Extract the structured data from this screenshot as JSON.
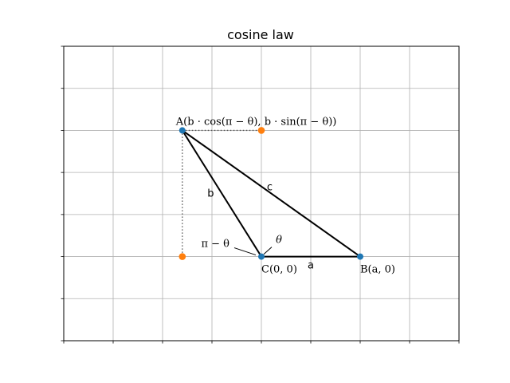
{
  "chart_data": {
    "type": "diagram",
    "title": "cosine law",
    "xlim": [
      -2,
      2
    ],
    "ylim": [
      -1,
      2.5
    ],
    "grid": true,
    "tick_labels_visible": false,
    "x_ticks": [
      -2,
      -1.5,
      -1,
      -0.5,
      0,
      0.5,
      1,
      1.5,
      2
    ],
    "y_ticks": [
      -1,
      -0.75,
      -0.5,
      -0.25,
      0,
      0.25,
      0.5,
      0.75,
      1,
      1.25,
      1.5,
      1.75,
      2,
      2.25,
      2.5
    ],
    "points": [
      {
        "id": "A",
        "x": -0.8,
        "y": 1.5,
        "color": "#1f77b4",
        "label": "A(b · cos(π − θ), b · sin(π − θ))"
      },
      {
        "id": "B",
        "x": 1.0,
        "y": 0.0,
        "color": "#1f77b4",
        "label": "B(a, 0)"
      },
      {
        "id": "C",
        "x": 0.0,
        "y": 0.0,
        "color": "#1f77b4",
        "label": "C(0, 0)"
      }
    ],
    "projection_points": [
      {
        "x": 0.0,
        "y": 1.5,
        "color": "#ff7f0e"
      },
      {
        "x": -0.8,
        "y": 0.0,
        "color": "#ff7f0e"
      }
    ],
    "segments": [
      {
        "from": [
          -0.8,
          1.5
        ],
        "to": [
          1.0,
          0.0
        ],
        "label": "c"
      },
      {
        "from": [
          -0.8,
          1.5
        ],
        "to": [
          0.0,
          0.0
        ],
        "label": "b"
      },
      {
        "from": [
          0.0,
          0.0
        ],
        "to": [
          1.0,
          0.0
        ],
        "label": "a"
      }
    ],
    "dotted_segments": [
      {
        "from": [
          -0.8,
          1.5
        ],
        "to": [
          0.0,
          1.5
        ]
      },
      {
        "from": [
          -0.8,
          1.5
        ],
        "to": [
          -0.8,
          0.0
        ]
      }
    ],
    "angle_labels": [
      {
        "text": "θ"
      },
      {
        "text": "π − θ"
      }
    ]
  }
}
